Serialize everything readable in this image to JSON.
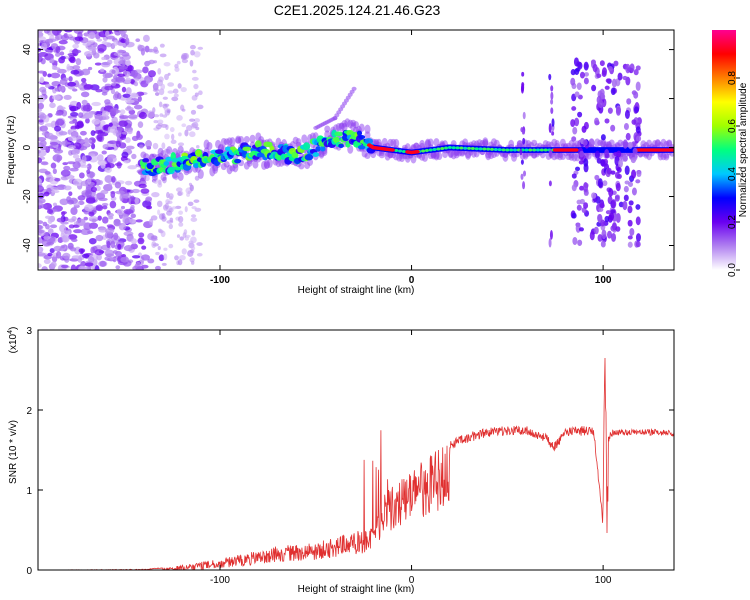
{
  "title": "C2E1.2025.124.21.46.G23",
  "colors": {
    "snr_line": "#e03030",
    "background_frame": "#000000"
  },
  "chart_data": [
    {
      "type": "heatmap",
      "xlabel": "Height of straight line (km)",
      "ylabel": "Frequency (Hz)",
      "xlim": [
        -195,
        137
      ],
      "ylim": [
        -50,
        48
      ],
      "x_ticks": [
        -100,
        0,
        100
      ],
      "y_ticks": [
        -40,
        -20,
        0,
        20,
        40
      ],
      "colorbar": {
        "label": "Normalized spectral amplitude",
        "range": [
          0,
          1
        ],
        "ticks": [
          0.0,
          0.2,
          0.4,
          0.6,
          0.8
        ],
        "colormap": [
          "#ffffff",
          "#b080f0",
          "#6a00f0",
          "#0000ff",
          "#00c8ff",
          "#00ff80",
          "#a0ff00",
          "#ffff00",
          "#ff8000",
          "#ff0000",
          "#ff0090"
        ]
      },
      "grid": false,
      "features": [
        {
          "name": "noise region",
          "x": [
            -195,
            -130
          ],
          "freq": [
            -50,
            48
          ],
          "amplitude": 0.15
        },
        {
          "name": "ridge",
          "points": [
            [
              -140,
              -8
            ],
            [
              -120,
              -6
            ],
            [
              -100,
              -4
            ],
            [
              -80,
              -1
            ],
            [
              -60,
              -3
            ],
            [
              -40,
              3
            ],
            [
              -30,
              5
            ],
            [
              -20,
              0
            ],
            [
              0,
              -2
            ],
            [
              20,
              0
            ],
            [
              50,
              -1
            ],
            [
              80,
              -1
            ],
            [
              100,
              -1
            ],
            [
              137,
              -1
            ]
          ]
        },
        {
          "name": "rising arm",
          "points": [
            [
              -50,
              8
            ],
            [
              -40,
              12
            ],
            [
              -30,
              24
            ]
          ]
        },
        {
          "name": "spike bands",
          "x": [
            58,
            73,
            88,
            98,
            106,
            115
          ],
          "freq_range": [
            -40,
            35
          ]
        }
      ]
    },
    {
      "type": "line",
      "xlabel": "Height of straight line (km)",
      "ylabel": "SNR (10 * v/v)",
      "y_multiplier": "(x10",
      "y_multiplier_exp": "4",
      "xlim": [
        -195,
        137
      ],
      "ylim": [
        0,
        3
      ],
      "x_ticks": [
        -100,
        0,
        100
      ],
      "y_ticks": [
        0,
        1,
        2,
        3
      ],
      "grid": false,
      "series": [
        {
          "x": [
            -195,
            -140,
            -125,
            -110,
            -100,
            -90,
            -80,
            -70,
            -60,
            -50,
            -40,
            -30,
            -25,
            -20,
            -15,
            -10,
            -5,
            0,
            10,
            20,
            30,
            40,
            50,
            60,
            70,
            75,
            80,
            90,
            95,
            100,
            101,
            102,
            103,
            105,
            110,
            120,
            130,
            137
          ],
          "y": [
            0.0,
            0.01,
            0.04,
            0.1,
            0.14,
            0.19,
            0.24,
            0.3,
            0.32,
            0.35,
            0.4,
            0.48,
            0.5,
            0.55,
            0.95,
            1.05,
            1.15,
            1.25,
            1.45,
            1.62,
            1.72,
            1.78,
            1.8,
            1.8,
            1.7,
            1.6,
            1.78,
            1.8,
            1.8,
            0.6,
            3.0,
            0.3,
            1.7,
            1.75,
            1.76,
            1.76,
            1.76,
            1.74
          ]
        }
      ]
    }
  ]
}
